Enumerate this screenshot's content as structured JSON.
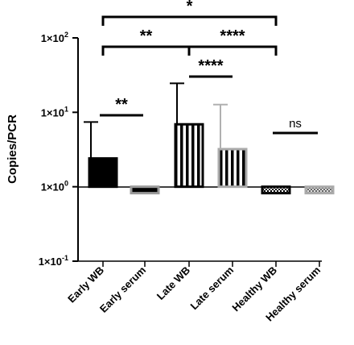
{
  "chart_data": {
    "type": "bar",
    "ylabel": "Copies/PCR",
    "yscale": "log",
    "ylim": [
      0.1,
      100
    ],
    "yticks": [
      {
        "value": 0.1,
        "mantissa": "1×10",
        "exp": "-1"
      },
      {
        "value": 1,
        "mantissa": "1×10",
        "exp": "0"
      },
      {
        "value": 10,
        "mantissa": "1×10",
        "exp": "1"
      },
      {
        "value": 100,
        "mantissa": "1×10",
        "exp": "2"
      }
    ],
    "grid": false,
    "legend": "none",
    "categories": [
      "Early WB",
      "Early serum",
      "Late WB",
      "Late serum",
      "Healthy WB",
      "Healthy serum"
    ],
    "values": [
      2.4,
      0.82,
      6.9,
      3.2,
      0.82,
      0.82
    ],
    "error_upper": [
      7.4,
      null,
      24.5,
      12.7,
      null,
      null
    ],
    "bar_styles": [
      "solid-black",
      "solid-gray",
      "vertical-stripes-black",
      "vertical-stripes-gray",
      "checker-black",
      "checker-gray"
    ],
    "colors": {
      "black": "#000000",
      "gray": "#9a9a9a",
      "light_gray": "#c8c8c8"
    },
    "significance": [
      {
        "from": 0,
        "to": 4,
        "label": "*",
        "bracket": true,
        "level": 0
      },
      {
        "from": 0,
        "to": 2,
        "label": "**",
        "bracket": true,
        "level": 1
      },
      {
        "from": 2,
        "to": 4,
        "label": "****",
        "bracket": true,
        "level": 1
      },
      {
        "from": 2,
        "to": 3,
        "label": "****",
        "bracket": false,
        "level": 2
      },
      {
        "from": 0,
        "to": 1,
        "label": "**",
        "bracket": false,
        "level": 3
      },
      {
        "from": 4,
        "to": 5,
        "label": "ns",
        "bracket": false,
        "level": 3
      }
    ]
  }
}
